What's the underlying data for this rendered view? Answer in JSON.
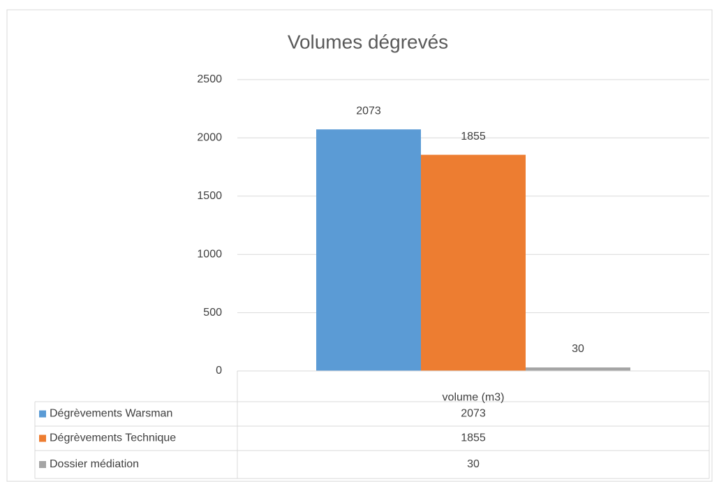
{
  "chart_data": {
    "type": "bar",
    "title": "Volumes dégrevés",
    "categories": [
      "volume (m3)"
    ],
    "series": [
      {
        "name": "Dégrèvements Warsman",
        "color": "#5b9bd5",
        "values": [
          2073
        ]
      },
      {
        "name": "Dégrèvements Technique",
        "color": "#ed7d31",
        "values": [
          1855
        ]
      },
      {
        "name": "Dossier médiation",
        "color": "#a5a5a5",
        "values": [
          30
        ]
      }
    ],
    "ylim": [
      0,
      2500
    ],
    "yticks": [
      0,
      500,
      1000,
      1500,
      2000,
      2500
    ],
    "grid": true
  }
}
